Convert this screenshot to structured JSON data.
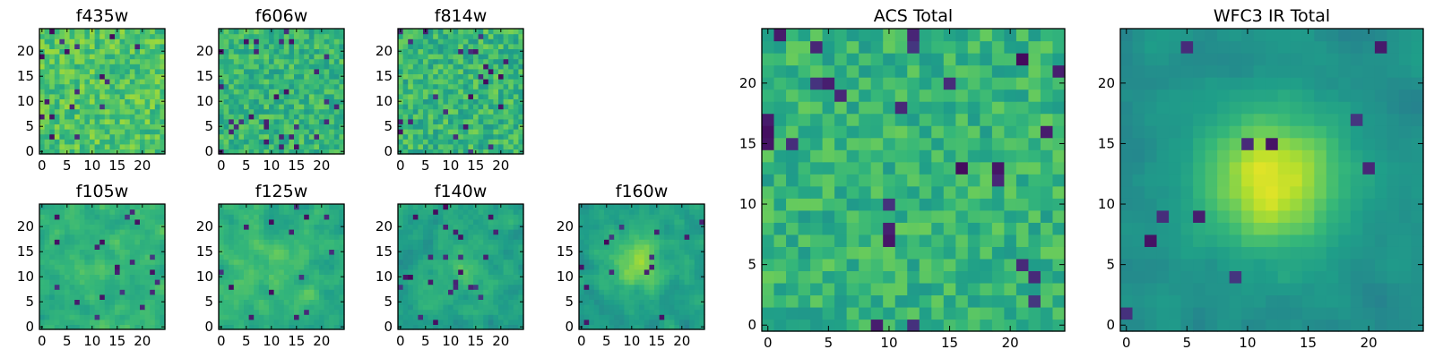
{
  "figure": {
    "background": "#ffffff"
  },
  "colormap": {
    "name": "viridis",
    "dark": "#440154",
    "mid": "#21918c",
    "light": "#fde725"
  },
  "chart_data": [
    {
      "type": "heatmap",
      "title": "f435w",
      "grid": 25,
      "xlim": [
        0,
        24
      ],
      "ylim": [
        0,
        24
      ],
      "xticks": [
        0,
        5,
        10,
        15,
        20
      ],
      "yticks": [
        0,
        5,
        10,
        15,
        20
      ],
      "texture": "noisy, mostly light",
      "mean": 0.72,
      "spread": 0.26,
      "blob_strength": 0.0,
      "blob_center": [
        12,
        12
      ],
      "blob_sigma": 4,
      "dark_fraction": 0.04,
      "seed": 11
    },
    {
      "type": "heatmap",
      "title": "f606w",
      "grid": 25,
      "xlim": [
        0,
        24
      ],
      "ylim": [
        0,
        24
      ],
      "xticks": [
        0,
        5,
        10,
        15,
        20
      ],
      "yticks": [
        0,
        5,
        10,
        15,
        20
      ],
      "texture": "noisy",
      "mean": 0.66,
      "spread": 0.26,
      "blob_strength": 0.0,
      "blob_center": [
        12,
        12
      ],
      "blob_sigma": 4,
      "dark_fraction": 0.04,
      "seed": 23
    },
    {
      "type": "heatmap",
      "title": "f814w",
      "grid": 25,
      "xlim": [
        0,
        24
      ],
      "ylim": [
        0,
        24
      ],
      "xticks": [
        0,
        5,
        10,
        15,
        20
      ],
      "yticks": [
        0,
        5,
        10,
        15,
        20
      ],
      "texture": "noisy",
      "mean": 0.66,
      "spread": 0.28,
      "blob_strength": 0.0,
      "blob_center": [
        12,
        12
      ],
      "blob_sigma": 4,
      "dark_fraction": 0.04,
      "seed": 37
    },
    {
      "type": "heatmap",
      "title": "f105w",
      "grid": 25,
      "xlim": [
        0,
        24
      ],
      "ylim": [
        0,
        24
      ],
      "xticks": [
        0,
        5,
        10,
        15,
        20
      ],
      "yticks": [
        0,
        5,
        10,
        15,
        20
      ],
      "texture": "smoothed noise",
      "mean": 0.64,
      "spread": 0.22,
      "blob_strength": 0.05,
      "blob_center": [
        12,
        12
      ],
      "blob_sigma": 4,
      "dark_fraction": 0.03,
      "seed": 41
    },
    {
      "type": "heatmap",
      "title": "f125w",
      "grid": 25,
      "xlim": [
        0,
        24
      ],
      "ylim": [
        0,
        24
      ],
      "xticks": [
        0,
        5,
        10,
        15,
        20
      ],
      "yticks": [
        0,
        5,
        10,
        15,
        20
      ],
      "texture": "smoothed noise",
      "mean": 0.64,
      "spread": 0.22,
      "blob_strength": 0.06,
      "blob_center": [
        11,
        12
      ],
      "blob_sigma": 4,
      "dark_fraction": 0.03,
      "seed": 53
    },
    {
      "type": "heatmap",
      "title": "f140w",
      "grid": 25,
      "xlim": [
        0,
        24
      ],
      "ylim": [
        0,
        24
      ],
      "xticks": [
        0,
        5,
        10,
        15,
        20
      ],
      "yticks": [
        0,
        5,
        10,
        15,
        20
      ],
      "texture": "smoothed noise",
      "mean": 0.58,
      "spread": 0.22,
      "blob_strength": 0.1,
      "blob_center": [
        12,
        12
      ],
      "blob_sigma": 4,
      "dark_fraction": 0.03,
      "seed": 67
    },
    {
      "type": "heatmap",
      "title": "f160w",
      "grid": 25,
      "xlim": [
        0,
        24
      ],
      "ylim": [
        0,
        24
      ],
      "xticks": [
        0,
        5,
        10,
        15,
        20
      ],
      "yticks": [
        0,
        5,
        10,
        15,
        20
      ],
      "texture": "smoothed noise with central source",
      "mean": 0.56,
      "spread": 0.2,
      "blob_strength": 0.28,
      "blob_center": [
        11,
        13
      ],
      "blob_sigma": 4,
      "dark_fraction": 0.03,
      "seed": 79
    },
    {
      "type": "heatmap",
      "title": "ACS Total",
      "grid": 25,
      "xlim": [
        0,
        24
      ],
      "ylim": [
        0,
        24
      ],
      "xticks": [
        0,
        5,
        10,
        15,
        20
      ],
      "yticks": [
        0,
        5,
        10,
        15,
        20
      ],
      "texture": "noisy",
      "mean": 0.65,
      "spread": 0.24,
      "blob_strength": 0.0,
      "blob_center": [
        12,
        12
      ],
      "blob_sigma": 4,
      "dark_fraction": 0.05,
      "seed": 97
    },
    {
      "type": "heatmap",
      "title": "WFC3 IR Total",
      "grid": 25,
      "xlim": [
        0,
        24
      ],
      "ylim": [
        0,
        24
      ],
      "xticks": [
        0,
        5,
        10,
        15,
        20
      ],
      "yticks": [
        0,
        5,
        10,
        15,
        20
      ],
      "texture": "smooth with bright central source",
      "mean": 0.5,
      "spread": 0.12,
      "blob_strength": 0.45,
      "blob_center": [
        12,
        12
      ],
      "blob_sigma": 4,
      "dark_fraction": 0.02,
      "seed": 113
    }
  ]
}
